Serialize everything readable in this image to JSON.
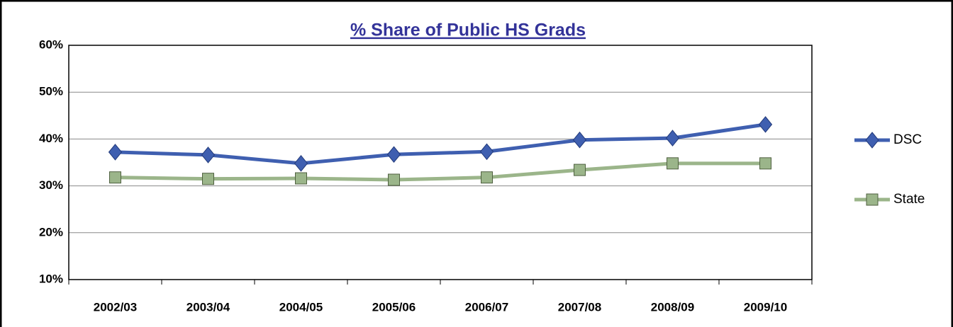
{
  "chart_data": {
    "type": "line",
    "title": "% Share of Public HS Grads",
    "categories": [
      "2002/03",
      "2003/04",
      "2004/05",
      "2005/06",
      "2006/07",
      "2007/08",
      "2008/09",
      "2009/10"
    ],
    "series": [
      {
        "name": "DSC",
        "color": "#3f5fb0",
        "marker": "diamond",
        "values": [
          37.2,
          36.6,
          34.8,
          36.7,
          37.3,
          39.8,
          40.2,
          43.1
        ]
      },
      {
        "name": "State",
        "color": "#9bb58a",
        "marker": "square",
        "values": [
          31.8,
          31.5,
          31.6,
          31.3,
          31.8,
          33.4,
          34.8,
          34.8
        ]
      }
    ],
    "ylim": [
      10,
      60
    ],
    "yticks": [
      {
        "value": 10,
        "label": "10%"
      },
      {
        "value": 20,
        "label": "20%"
      },
      {
        "value": 30,
        "label": "30%"
      },
      {
        "value": 40,
        "label": "40%"
      },
      {
        "value": 50,
        "label": "50%"
      },
      {
        "value": 60,
        "label": "60%"
      }
    ],
    "grid": true,
    "legend": "right"
  }
}
